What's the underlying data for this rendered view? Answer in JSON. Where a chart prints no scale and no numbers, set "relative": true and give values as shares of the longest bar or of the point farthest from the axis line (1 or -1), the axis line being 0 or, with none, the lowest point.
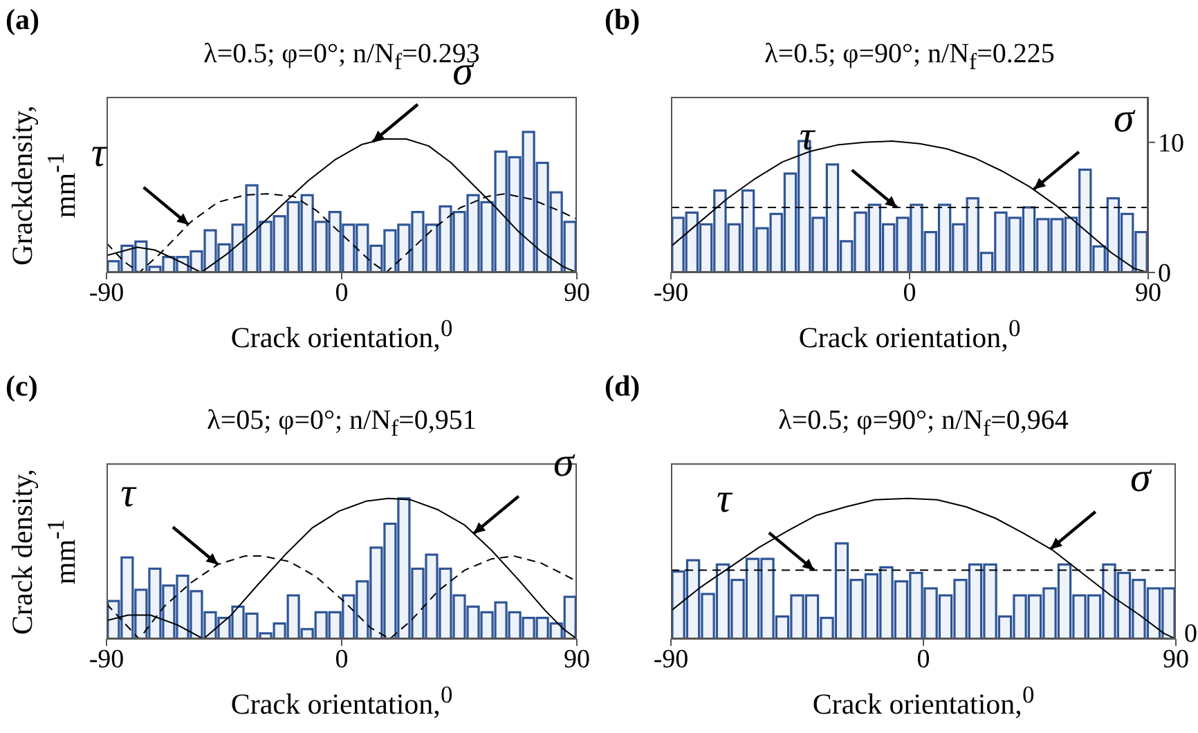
{
  "chart_data": [
    {
      "type": "bar",
      "title": "λ=0.5; φ=0°; n/N$_{f}$=0.293",
      "xlabel": "Crack orientation,$^{0}$",
      "ylabel": "Grackdensity, mm$^{-1}$",
      "relative": true,
      "xlim": [
        -90,
        90
      ],
      "xticks": [
        -90,
        0,
        90
      ],
      "annotations": [
        "(a)",
        {
          "text": "τ",
          "x": -58.6,
          "y": 0.34
        },
        {
          "text": "σ",
          "x": 11.9,
          "y": 0.93
        }
      ],
      "x": [
        -87.4,
        -82.1,
        -76.8,
        -71.5,
        -66.2,
        -60.9,
        -55.6,
        -50.3,
        -45.0,
        -39.7,
        -34.4,
        -29.1,
        -23.8,
        -18.5,
        -13.2,
        -7.9,
        -2.6,
        2.6,
        7.9,
        13.2,
        18.5,
        23.8,
        29.1,
        34.4,
        39.7,
        45.0,
        50.3,
        55.6,
        60.9,
        66.2,
        71.5,
        76.8,
        82.1,
        87.4
      ],
      "series": [
        {
          "color": "#2f5597",
          "values": [
            0.08,
            0.19,
            0.22,
            0.04,
            0.11,
            0.11,
            0.15,
            0.3,
            0.2,
            0.34,
            0.62,
            0.36,
            0.4,
            0.5,
            0.55,
            0.36,
            0.43,
            0.34,
            0.34,
            0.19,
            0.3,
            0.34,
            0.43,
            0.34,
            0.47,
            0.43,
            0.55,
            0.5,
            0.86,
            0.82,
            1,
            0.78,
            0.57,
            0.36
          ]
        },
        {
          "type": "line",
          "color": "#000000",
          "line_style": "solid",
          "x": [
            -90,
            -78.3,
            -71.5,
            -61.1,
            -53.8,
            -44,
            -33.7,
            -23.4,
            -13,
            -2.7,
            7.6,
            16.1,
            24.7,
            33.3,
            41.9,
            50.5,
            59.1,
            67.7,
            76.3,
            84.9,
            90
          ],
          "values": [
            0.12,
            0.18,
            0.16,
            0.07,
            0,
            0.13,
            0.29,
            0.47,
            0.65,
            0.8,
            0.91,
            0.95,
            0.95,
            0.9,
            0.78,
            0.62,
            0.46,
            0.29,
            0.15,
            0.04,
            0
          ]
        },
        {
          "type": "line",
          "color": "#000000",
          "line_style": "dashed",
          "x": [
            -90,
            -83.5,
            -77.5,
            -69.7,
            -57.7,
            -47.4,
            -37.1,
            -28.5,
            -18.2,
            -9.6,
            0.7,
            11,
            17,
            24.7,
            35,
            45.3,
            55.6,
            62.5,
            72.8,
            83.1,
            90
          ],
          "values": [
            0.21,
            0.08,
            0,
            0.13,
            0.36,
            0.5,
            0.55,
            0.56,
            0.54,
            0.44,
            0.26,
            0.08,
            0,
            0.13,
            0.31,
            0.46,
            0.54,
            0.56,
            0.52,
            0.44,
            0.38
          ]
        }
      ]
    },
    {
      "type": "bar",
      "title": "λ=0.5; φ=90°; n/N$_{f}$=0.225",
      "xlabel": "Crack orientation,$^{0}$",
      "xlim": [
        -90,
        90
      ],
      "xticks": [
        -90,
        0,
        90
      ],
      "ylim": [
        0,
        13.5
      ],
      "yticks": [
        0,
        10
      ],
      "annotations": [
        "(b)",
        {
          "text": "τ",
          "x": -4.8,
          "y": 5.0
        },
        {
          "text": "σ",
          "x": 46.9,
          "y": 6.4
        }
      ],
      "x": [
        -87.4,
        -82.1,
        -76.8,
        -71.5,
        -66.2,
        -60.9,
        -55.6,
        -50.3,
        -45.0,
        -39.7,
        -34.4,
        -29.1,
        -23.8,
        -18.5,
        -13.2,
        -7.9,
        -2.6,
        2.6,
        7.9,
        13.2,
        18.5,
        23.8,
        29.1,
        34.4,
        39.7,
        45.0,
        50.3,
        55.6,
        60.9,
        66.2,
        71.5,
        76.8,
        82.1,
        87.4
      ],
      "series": [
        {
          "color": "#2f5597",
          "values": [
            4.2,
            4.6,
            3.7,
            6.3,
            3.7,
            6.3,
            3.4,
            4.5,
            7.6,
            10.1,
            4.2,
            8.3,
            2.4,
            4.6,
            5.2,
            3.7,
            4.2,
            5.2,
            3.1,
            5.2,
            3.7,
            5.7,
            1.5,
            4.6,
            4.2,
            5.0,
            4.1,
            4.1,
            4.2,
            7.9,
            2.0,
            5.7,
            4.5,
            3.1
          ]
        },
        {
          "type": "line",
          "color": "#000000",
          "line_style": "solid",
          "x": [
            -90,
            -79,
            -68.6,
            -58.3,
            -47.9,
            -37.6,
            -27.2,
            -16.9,
            -6.6,
            3.8,
            14.1,
            24.5,
            34.8,
            45.2,
            55.5,
            65.9,
            76.2,
            84.8,
            90
          ],
          "values": [
            2.0,
            3.9,
            5.7,
            7.2,
            8.5,
            9.3,
            9.8,
            10.0,
            10.1,
            9.9,
            9.5,
            8.8,
            7.8,
            6.6,
            5.1,
            3.3,
            1.5,
            0.3,
            0
          ]
        },
        {
          "type": "line",
          "color": "#000000",
          "line_style": "dashed",
          "x": [
            -90,
            90
          ],
          "values": [
            5.0,
            5.0
          ]
        }
      ]
    },
    {
      "type": "bar",
      "title": "λ=05; φ=0°; n/N$_{f}$=0,951",
      "xlabel": "Crack orientation,$^{0}$",
      "ylabel": "Crack density, mm$^{-1}$",
      "relative": true,
      "xlim": [
        -90,
        90
      ],
      "xticks": [
        -90,
        0,
        90
      ],
      "annotations": [
        "(c)",
        {
          "text": "τ",
          "x": -47.4,
          "y": 0.53
        },
        {
          "text": "σ",
          "x": 50.5,
          "y": 0.75
        }
      ],
      "x": [
        -87.4,
        -82.1,
        -76.8,
        -71.5,
        -66.2,
        -60.9,
        -55.6,
        -50.3,
        -45.0,
        -39.7,
        -34.4,
        -29.1,
        -23.8,
        -18.5,
        -13.2,
        -7.9,
        -2.6,
        2.6,
        7.9,
        13.2,
        18.5,
        23.8,
        29.1,
        34.4,
        39.7,
        45.0,
        50.3,
        55.6,
        60.9,
        66.2,
        71.5,
        76.8,
        82.1,
        87.4
      ],
      "series": [
        {
          "color": "#2f5597",
          "values": [
            0.27,
            0.58,
            0.35,
            0.5,
            0.38,
            0.45,
            0.34,
            0.19,
            0.15,
            0.23,
            0.18,
            0.04,
            0.11,
            0.31,
            0.07,
            0.19,
            0.19,
            0.31,
            0.41,
            0.65,
            0.82,
            1,
            0.5,
            0.6,
            0.5,
            0.31,
            0.23,
            0.19,
            0.26,
            0.19,
            0.15,
            0.15,
            0.11,
            0.3
          ]
        },
        {
          "type": "line",
          "color": "#000000",
          "line_style": "solid",
          "x": [
            -90,
            -81.8,
            -73.2,
            -62.9,
            -52.9,
            -42.3,
            -31.9,
            -21.6,
            -11.3,
            -1,
            9.3,
            17.9,
            26.5,
            36.8,
            47.1,
            57.4,
            67.7,
            78,
            84.9,
            90
          ],
          "values": [
            0.13,
            0.17,
            0.17,
            0.1,
            0,
            0.17,
            0.39,
            0.6,
            0.79,
            0.91,
            0.98,
            1.0,
            0.99,
            0.92,
            0.81,
            0.63,
            0.42,
            0.2,
            0.07,
            0
          ]
        },
        {
          "type": "line",
          "color": "#000000",
          "line_style": "dashed",
          "x": [
            -90,
            -83.5,
            -77.5,
            -68,
            -57.7,
            -47.4,
            -37.1,
            -30.2,
            -19.9,
            -9.6,
            0.7,
            11,
            18.4,
            26.5,
            36.8,
            47.1,
            57.4,
            66,
            76.3,
            84.9,
            90
          ],
          "values": [
            0.25,
            0.12,
            0,
            0.23,
            0.4,
            0.53,
            0.59,
            0.59,
            0.55,
            0.44,
            0.27,
            0.08,
            0,
            0.13,
            0.34,
            0.49,
            0.57,
            0.59,
            0.54,
            0.46,
            0.41
          ]
        }
      ]
    },
    {
      "type": "bar",
      "title": "λ=0.5; φ=90°; n/N$_{f}$=0,964",
      "xlabel": "Crack orientation,$^{0}$",
      "relative": true,
      "xlim": [
        -90,
        90
      ],
      "xticks": [
        -90,
        0,
        90
      ],
      "annotations": [
        "(d)",
        {
          "text": "τ",
          "x": -39,
          "y": 0.49
        },
        {
          "text": "σ",
          "x": 45.3,
          "y": 0.64
        },
        {
          "text": "0",
          "x": 90,
          "y": 0
        }
      ],
      "x": [
        -87.4,
        -82.1,
        -76.8,
        -71.5,
        -66.2,
        -60.9,
        -55.6,
        -50.3,
        -45.0,
        -39.7,
        -34.4,
        -29.1,
        -23.8,
        -18.5,
        -13.2,
        -7.9,
        -2.6,
        2.6,
        7.9,
        13.2,
        18.5,
        23.8,
        29.1,
        34.4,
        39.7,
        45.0,
        50.3,
        55.6,
        60.9,
        66.2,
        71.5,
        76.8,
        82.1,
        87.4
      ],
      "series": [
        {
          "color": "#2f5597",
          "values": [
            0.48,
            0.56,
            0.32,
            0.53,
            0.42,
            0.57,
            0.57,
            0.16,
            0.31,
            0.31,
            0.15,
            0.68,
            0.42,
            0.46,
            0.51,
            0.41,
            0.47,
            0.36,
            0.31,
            0.42,
            0.53,
            0.53,
            0.16,
            0.31,
            0.31,
            0.36,
            0.53,
            0.31,
            0.31,
            0.53,
            0.47,
            0.42,
            0.36,
            0.36
          ]
        },
        {
          "type": "line",
          "color": "#000000",
          "line_style": "solid",
          "x": [
            -90,
            -79.3,
            -69,
            -58.7,
            -48.4,
            -38.1,
            -27.7,
            -17.4,
            -5.4,
            4.9,
            15.3,
            25.6,
            35.9,
            46.2,
            56.5,
            66.8,
            77.1,
            85.7,
            90
          ],
          "values": [
            0.2,
            0.37,
            0.51,
            0.65,
            0.77,
            0.88,
            0.94,
            0.99,
            1.0,
            0.99,
            0.94,
            0.86,
            0.75,
            0.63,
            0.47,
            0.31,
            0.17,
            0.04,
            0
          ]
        },
        {
          "type": "line",
          "color": "#000000",
          "line_style": "dashed",
          "x": [
            -90,
            90
          ],
          "values": [
            0.49,
            0.49
          ]
        }
      ]
    }
  ]
}
